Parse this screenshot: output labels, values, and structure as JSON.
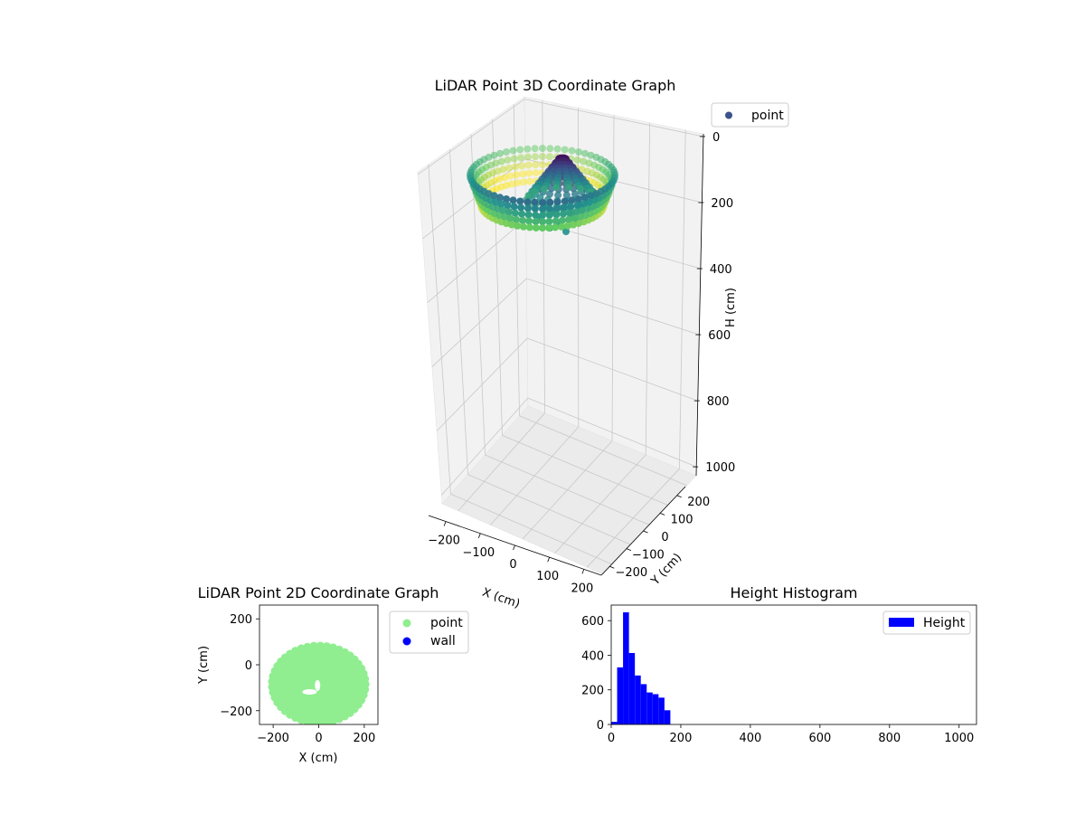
{
  "colors": {
    "point_2d": "#90ee90",
    "wall_2d": "#0000ff",
    "histogram_bar": "#0000ff",
    "legend_3d_marker": "#3b528b",
    "pane_fill": "#f2f2f2",
    "grid": "#c8c8c8",
    "axis": "#000000"
  },
  "chart_data": [
    {
      "type": "scatter3d",
      "title": "LiDAR Point 3D Coordinate Graph",
      "xlabel": "X (cm)",
      "ylabel": "Y (cm)",
      "zlabel": "H (cm)",
      "xlim": [
        -250,
        250
      ],
      "ylim": [
        -250,
        250
      ],
      "zlim": [
        0,
        1000
      ],
      "z_inverted": true,
      "xticks": [
        "−200",
        "−100",
        "0",
        "100",
        "200"
      ],
      "yticks": [
        "−200",
        "−100",
        "0",
        "100",
        "200"
      ],
      "zticks": [
        "0",
        "200",
        "400",
        "600",
        "800",
        "1000"
      ],
      "colormap": "viridis",
      "legend": {
        "entries": [
          "point"
        ],
        "placement": "upper-right-outside"
      },
      "description_shape": "ring of points with radius ~200 cm at heights ~20-180 cm, plus central cone",
      "grid": true
    },
    {
      "type": "scatter",
      "title": "LiDAR Point 2D Coordinate Graph",
      "xlabel": "X (cm)",
      "ylabel": "Y (cm)",
      "xlim": [
        -260,
        260
      ],
      "ylim": [
        -260,
        260
      ],
      "xticks": [
        "−200",
        "0",
        "200"
      ],
      "yticks": [
        "−200",
        "0",
        "200"
      ],
      "legend": {
        "entries": [
          "point",
          "wall"
        ],
        "placement": "right-outside"
      },
      "grid": false
    },
    {
      "type": "bar",
      "title": "Height Histogram",
      "xlim": [
        0,
        1050
      ],
      "ylim": [
        0,
        690
      ],
      "xticks": [
        "0",
        "200",
        "400",
        "600",
        "800",
        "1000"
      ],
      "yticks": [
        "0",
        "200",
        "400",
        "600"
      ],
      "bin_width": 17,
      "bins": [
        {
          "x0": 0,
          "value": 15
        },
        {
          "x0": 17,
          "value": 330
        },
        {
          "x0": 34,
          "value": 648
        },
        {
          "x0": 51,
          "value": 413
        },
        {
          "x0": 68,
          "value": 283
        },
        {
          "x0": 85,
          "value": 233
        },
        {
          "x0": 102,
          "value": 185
        },
        {
          "x0": 119,
          "value": 175
        },
        {
          "x0": 136,
          "value": 155
        },
        {
          "x0": 153,
          "value": 82
        }
      ],
      "legend": {
        "entries": [
          "Height"
        ],
        "placement": "top-right"
      },
      "grid": false
    }
  ]
}
